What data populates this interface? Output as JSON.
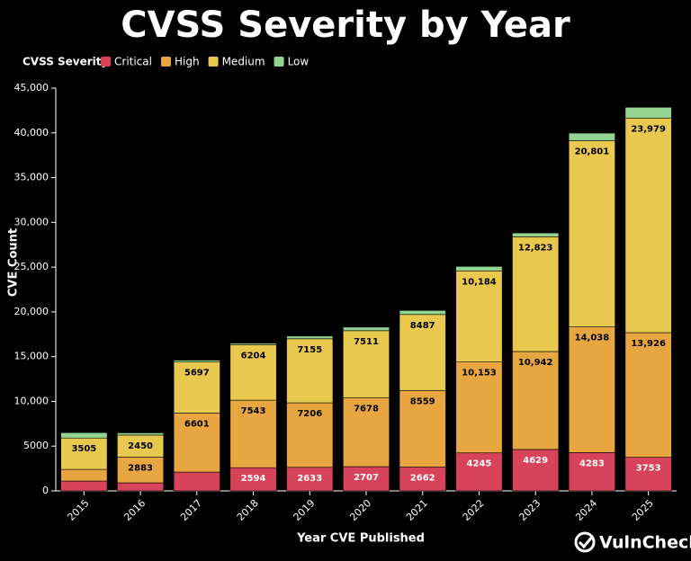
{
  "chart_data": {
    "type": "stacked_bar",
    "title": "CVSS Severity by Year",
    "legend_title": "CVSS Severity",
    "x_label": "Year CVE Published",
    "y_label": "CVE Count",
    "brand": "VulnCheck",
    "categories": [
      "2015",
      "2016",
      "2017",
      "2018",
      "2019",
      "2020",
      "2021",
      "2022",
      "2023",
      "2024",
      "2025"
    ],
    "series": [
      {
        "name": "Critical",
        "color": "#d6435a",
        "values": [
          1100,
          900,
          2100,
          2594,
          2633,
          2707,
          2662,
          4245,
          4629,
          4283,
          3753
        ],
        "value_labels": [
          null,
          null,
          null,
          "2594",
          "2633",
          "2707",
          "2662",
          "4245",
          "4629",
          "4283",
          "3753"
        ]
      },
      {
        "name": "High",
        "color": "#e8a640",
        "values": [
          1300,
          2883,
          6601,
          7543,
          7206,
          7678,
          8559,
          10153,
          10942,
          14038,
          13926
        ],
        "value_labels": [
          null,
          "2883",
          "6601",
          "7543",
          "7206",
          "7678",
          "8559",
          "10,153",
          "10,942",
          "14,038",
          "13,926"
        ]
      },
      {
        "name": "Medium",
        "color": "#e9c84f",
        "values": [
          3505,
          2450,
          5697,
          6204,
          7155,
          7511,
          8487,
          10184,
          12823,
          20801,
          23979
        ],
        "value_labels": [
          "3505",
          "2450",
          "5697",
          "6204",
          "7155",
          "7511",
          "8487",
          "10,184",
          "12,823",
          "20,801",
          "23,979"
        ]
      },
      {
        "name": "Low",
        "color": "#93d492",
        "values": [
          600,
          250,
          200,
          150,
          300,
          400,
          450,
          500,
          420,
          850,
          1200
        ],
        "value_labels": [
          null,
          null,
          null,
          null,
          null,
          null,
          null,
          null,
          null,
          null,
          null
        ]
      }
    ],
    "ylim": [
      0,
      45000
    ],
    "yticks": [
      0,
      5000,
      {
        "value": 10000,
        "label": "10,000"
      },
      {
        "value": 15000,
        "label": "15,000"
      },
      {
        "value": 20000,
        "label": "20,000"
      },
      {
        "value": 25000,
        "label": "25,000"
      },
      {
        "value": 30000,
        "label": "30,000"
      },
      {
        "value": 35000,
        "label": "35,000"
      },
      {
        "value": 40000,
        "label": "40,000"
      },
      {
        "value": 45000,
        "label": "45,000"
      }
    ],
    "grid": false
  }
}
